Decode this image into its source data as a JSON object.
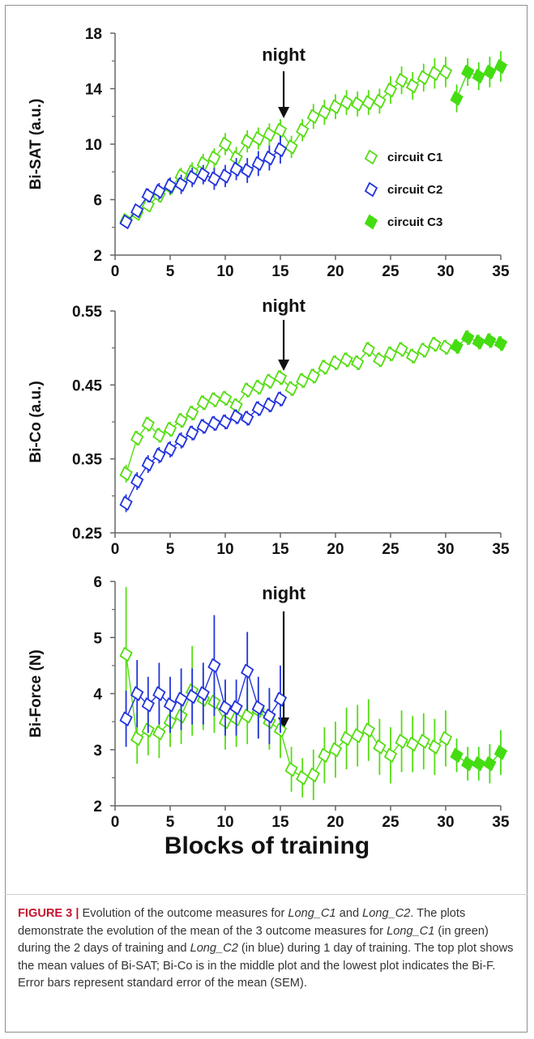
{
  "chart_data": [
    {
      "type": "line",
      "ylabel": "Bi-SAT (a.u.)",
      "xlabel": "Blocks of training",
      "ylim": [
        2,
        18
      ],
      "yticks": [
        "2",
        "6",
        "10",
        "14",
        "18"
      ],
      "xlim": [
        0,
        35
      ],
      "xticks": [
        "0",
        "5",
        "10",
        "15",
        "20",
        "25",
        "30",
        "35"
      ],
      "annotation": {
        "text": "night",
        "x": 15.3
      },
      "legend": {
        "placement": "right",
        "entries": [
          "circuit C1",
          "circuit C2",
          "circuit C3"
        ]
      },
      "series": [
        {
          "name": "circuit C1",
          "color": "#55dd11",
          "marker": "open-diamond",
          "x": [
            1,
            2,
            3,
            4,
            5,
            6,
            7,
            8,
            9,
            10,
            11,
            12,
            13,
            14,
            15,
            16,
            17,
            18,
            19,
            20,
            21,
            22,
            23,
            24,
            25,
            26,
            27,
            28,
            29,
            30
          ],
          "y": [
            4.5,
            5.0,
            5.6,
            6.3,
            6.9,
            7.7,
            8.0,
            8.6,
            9.0,
            10.0,
            9.0,
            10.2,
            10.4,
            10.7,
            11.0,
            9.8,
            11.0,
            12.0,
            12.3,
            12.7,
            13.0,
            12.9,
            13.0,
            13.1,
            13.9,
            14.6,
            14.2,
            14.8,
            15.1,
            15.2
          ],
          "err": [
            0.3,
            0.3,
            0.4,
            0.5,
            0.6,
            0.6,
            0.7,
            0.7,
            0.7,
            0.8,
            0.8,
            0.8,
            0.8,
            0.8,
            0.8,
            0.8,
            0.8,
            0.9,
            0.9,
            0.9,
            0.9,
            0.9,
            0.9,
            0.9,
            1.0,
            1.0,
            1.0,
            1.0,
            1.1,
            1.1
          ]
        },
        {
          "name": "circuit C2",
          "color": "#2233dd",
          "marker": "open-diamond",
          "x": [
            1,
            2,
            3,
            4,
            5,
            6,
            7,
            8,
            9,
            10,
            11,
            12,
            13,
            14,
            15
          ],
          "y": [
            4.4,
            5.2,
            6.3,
            6.6,
            7.0,
            7.1,
            7.6,
            7.8,
            7.5,
            7.7,
            8.2,
            8.1,
            8.6,
            9.0,
            9.6
          ],
          "err": [
            0.3,
            0.4,
            0.5,
            0.6,
            0.6,
            0.7,
            0.7,
            0.7,
            0.8,
            0.8,
            0.8,
            0.9,
            0.9,
            0.9,
            1.0
          ]
        },
        {
          "name": "circuit C3",
          "color": "#44dd11",
          "marker": "filled-diamond",
          "x": [
            31,
            32,
            33,
            34,
            35
          ],
          "y": [
            13.3,
            15.2,
            14.9,
            15.2,
            15.6
          ],
          "err": [
            1.0,
            1.0,
            1.0,
            1.1,
            1.1
          ]
        }
      ]
    },
    {
      "type": "line",
      "ylabel": "Bi-Co (a.u.)",
      "xlabel": "Blocks of training",
      "ylim": [
        0.25,
        0.55
      ],
      "yticks": [
        "0.25",
        "0.35",
        "0.45",
        "0.55"
      ],
      "xlim": [
        0,
        35
      ],
      "xticks": [
        "0",
        "5",
        "10",
        "15",
        "20",
        "25",
        "30",
        "35"
      ],
      "annotation": {
        "text": "night",
        "x": 15.3
      },
      "series": [
        {
          "name": "circuit C1",
          "color": "#55dd11",
          "marker": "open-diamond",
          "x": [
            1,
            2,
            3,
            4,
            5,
            6,
            7,
            8,
            9,
            10,
            11,
            12,
            13,
            14,
            15,
            16,
            17,
            18,
            19,
            20,
            21,
            22,
            23,
            24,
            25,
            26,
            27,
            28,
            29,
            30
          ],
          "y": [
            0.33,
            0.378,
            0.397,
            0.382,
            0.39,
            0.402,
            0.412,
            0.426,
            0.43,
            0.432,
            0.422,
            0.443,
            0.447,
            0.455,
            0.46,
            0.445,
            0.456,
            0.462,
            0.474,
            0.48,
            0.484,
            0.48,
            0.498,
            0.484,
            0.492,
            0.498,
            0.489,
            0.497,
            0.505,
            0.501
          ],
          "err": [
            0.012,
            0.01,
            0.01,
            0.01,
            0.01,
            0.01,
            0.01,
            0.01,
            0.01,
            0.01,
            0.01,
            0.01,
            0.01,
            0.01,
            0.01,
            0.01,
            0.01,
            0.01,
            0.01,
            0.01,
            0.01,
            0.01,
            0.01,
            0.01,
            0.01,
            0.01,
            0.01,
            0.01,
            0.01,
            0.01
          ]
        },
        {
          "name": "circuit C2",
          "color": "#2233dd",
          "marker": "open-diamond",
          "x": [
            1,
            2,
            3,
            4,
            5,
            6,
            7,
            8,
            9,
            10,
            11,
            12,
            13,
            14,
            15
          ],
          "y": [
            0.29,
            0.32,
            0.343,
            0.355,
            0.363,
            0.375,
            0.385,
            0.394,
            0.398,
            0.4,
            0.407,
            0.405,
            0.418,
            0.423,
            0.431
          ],
          "err": [
            0.012,
            0.012,
            0.012,
            0.011,
            0.011,
            0.011,
            0.01,
            0.01,
            0.01,
            0.01,
            0.01,
            0.01,
            0.01,
            0.01,
            0.01
          ]
        },
        {
          "name": "circuit C3",
          "color": "#44dd11",
          "marker": "filled-diamond",
          "x": [
            31,
            32,
            33,
            34,
            35
          ],
          "y": [
            0.502,
            0.514,
            0.508,
            0.51,
            0.506
          ],
          "err": [
            0.01,
            0.01,
            0.01,
            0.01,
            0.01
          ]
        }
      ]
    },
    {
      "type": "line",
      "ylabel": "Bi-Force (N)",
      "xlabel": "Blocks of training",
      "ylim": [
        2,
        6
      ],
      "yticks": [
        "2",
        "3",
        "4",
        "5",
        "6"
      ],
      "xlim": [
        0,
        35
      ],
      "xticks": [
        "0",
        "5",
        "10",
        "15",
        "20",
        "25",
        "30",
        "35"
      ],
      "annotation": {
        "text": "night",
        "x": 15.3
      },
      "series": [
        {
          "name": "circuit C1",
          "color": "#55dd11",
          "marker": "open-diamond",
          "x": [
            1,
            2,
            3,
            4,
            5,
            6,
            7,
            8,
            9,
            10,
            11,
            12,
            13,
            14,
            15,
            16,
            17,
            18,
            19,
            20,
            21,
            22,
            23,
            24,
            25,
            26,
            27,
            28,
            29,
            30
          ],
          "y": [
            4.7,
            3.2,
            3.35,
            3.3,
            3.5,
            3.6,
            4.05,
            3.9,
            3.85,
            3.5,
            3.55,
            3.6,
            3.7,
            3.5,
            3.35,
            2.65,
            2.5,
            2.55,
            2.9,
            3.0,
            3.2,
            3.25,
            3.35,
            3.05,
            2.9,
            3.15,
            3.1,
            3.15,
            3.05,
            3.2
          ],
          "err": [
            1.2,
            0.45,
            0.45,
            0.45,
            0.45,
            0.5,
            0.8,
            0.55,
            0.55,
            0.5,
            0.5,
            0.5,
            0.5,
            0.5,
            0.5,
            0.4,
            0.35,
            0.45,
            0.5,
            0.5,
            0.55,
            0.55,
            0.55,
            0.5,
            0.5,
            0.55,
            0.5,
            0.5,
            0.5,
            0.5
          ]
        },
        {
          "name": "circuit C2",
          "color": "#2233dd",
          "marker": "open-diamond",
          "x": [
            1,
            2,
            3,
            4,
            5,
            6,
            7,
            8,
            9,
            10,
            11,
            12,
            13,
            14,
            15
          ],
          "y": [
            3.55,
            4.0,
            3.8,
            4.0,
            3.8,
            3.9,
            3.95,
            4.0,
            4.5,
            3.75,
            3.75,
            4.4,
            3.75,
            3.6,
            3.9
          ],
          "err": [
            0.5,
            0.6,
            0.5,
            0.55,
            0.5,
            0.55,
            0.5,
            0.55,
            0.9,
            0.5,
            0.5,
            0.7,
            0.55,
            0.5,
            0.6
          ]
        },
        {
          "name": "circuit C3",
          "color": "#44dd11",
          "marker": "filled-diamond",
          "x": [
            31,
            32,
            33,
            34,
            35
          ],
          "y": [
            2.9,
            2.75,
            2.75,
            2.75,
            2.95
          ],
          "err": [
            0.3,
            0.3,
            0.3,
            0.35,
            0.4
          ]
        }
      ]
    }
  ],
  "xlabel_text": "Blocks of training",
  "caption": {
    "label": "FIGURE 3 |",
    "seg1": " Evolution of the outcome measures for ",
    "it1": "Long_C1",
    "seg2": " and ",
    "it2": "Long_C2",
    "seg3": ". The plots demonstrate the evolution of the mean of the 3 outcome measures for ",
    "it3": "Long_C1",
    "seg4": " (in green) during the 2 days of training and ",
    "it4": "Long_C2",
    "seg5": " (in blue) during 1 day of training. The top plot shows the mean values of Bi-SAT; Bi-Co is in the middle plot and the lowest plot indicates the Bi-F. Error bars represent standard error of the mean (SEM)."
  }
}
